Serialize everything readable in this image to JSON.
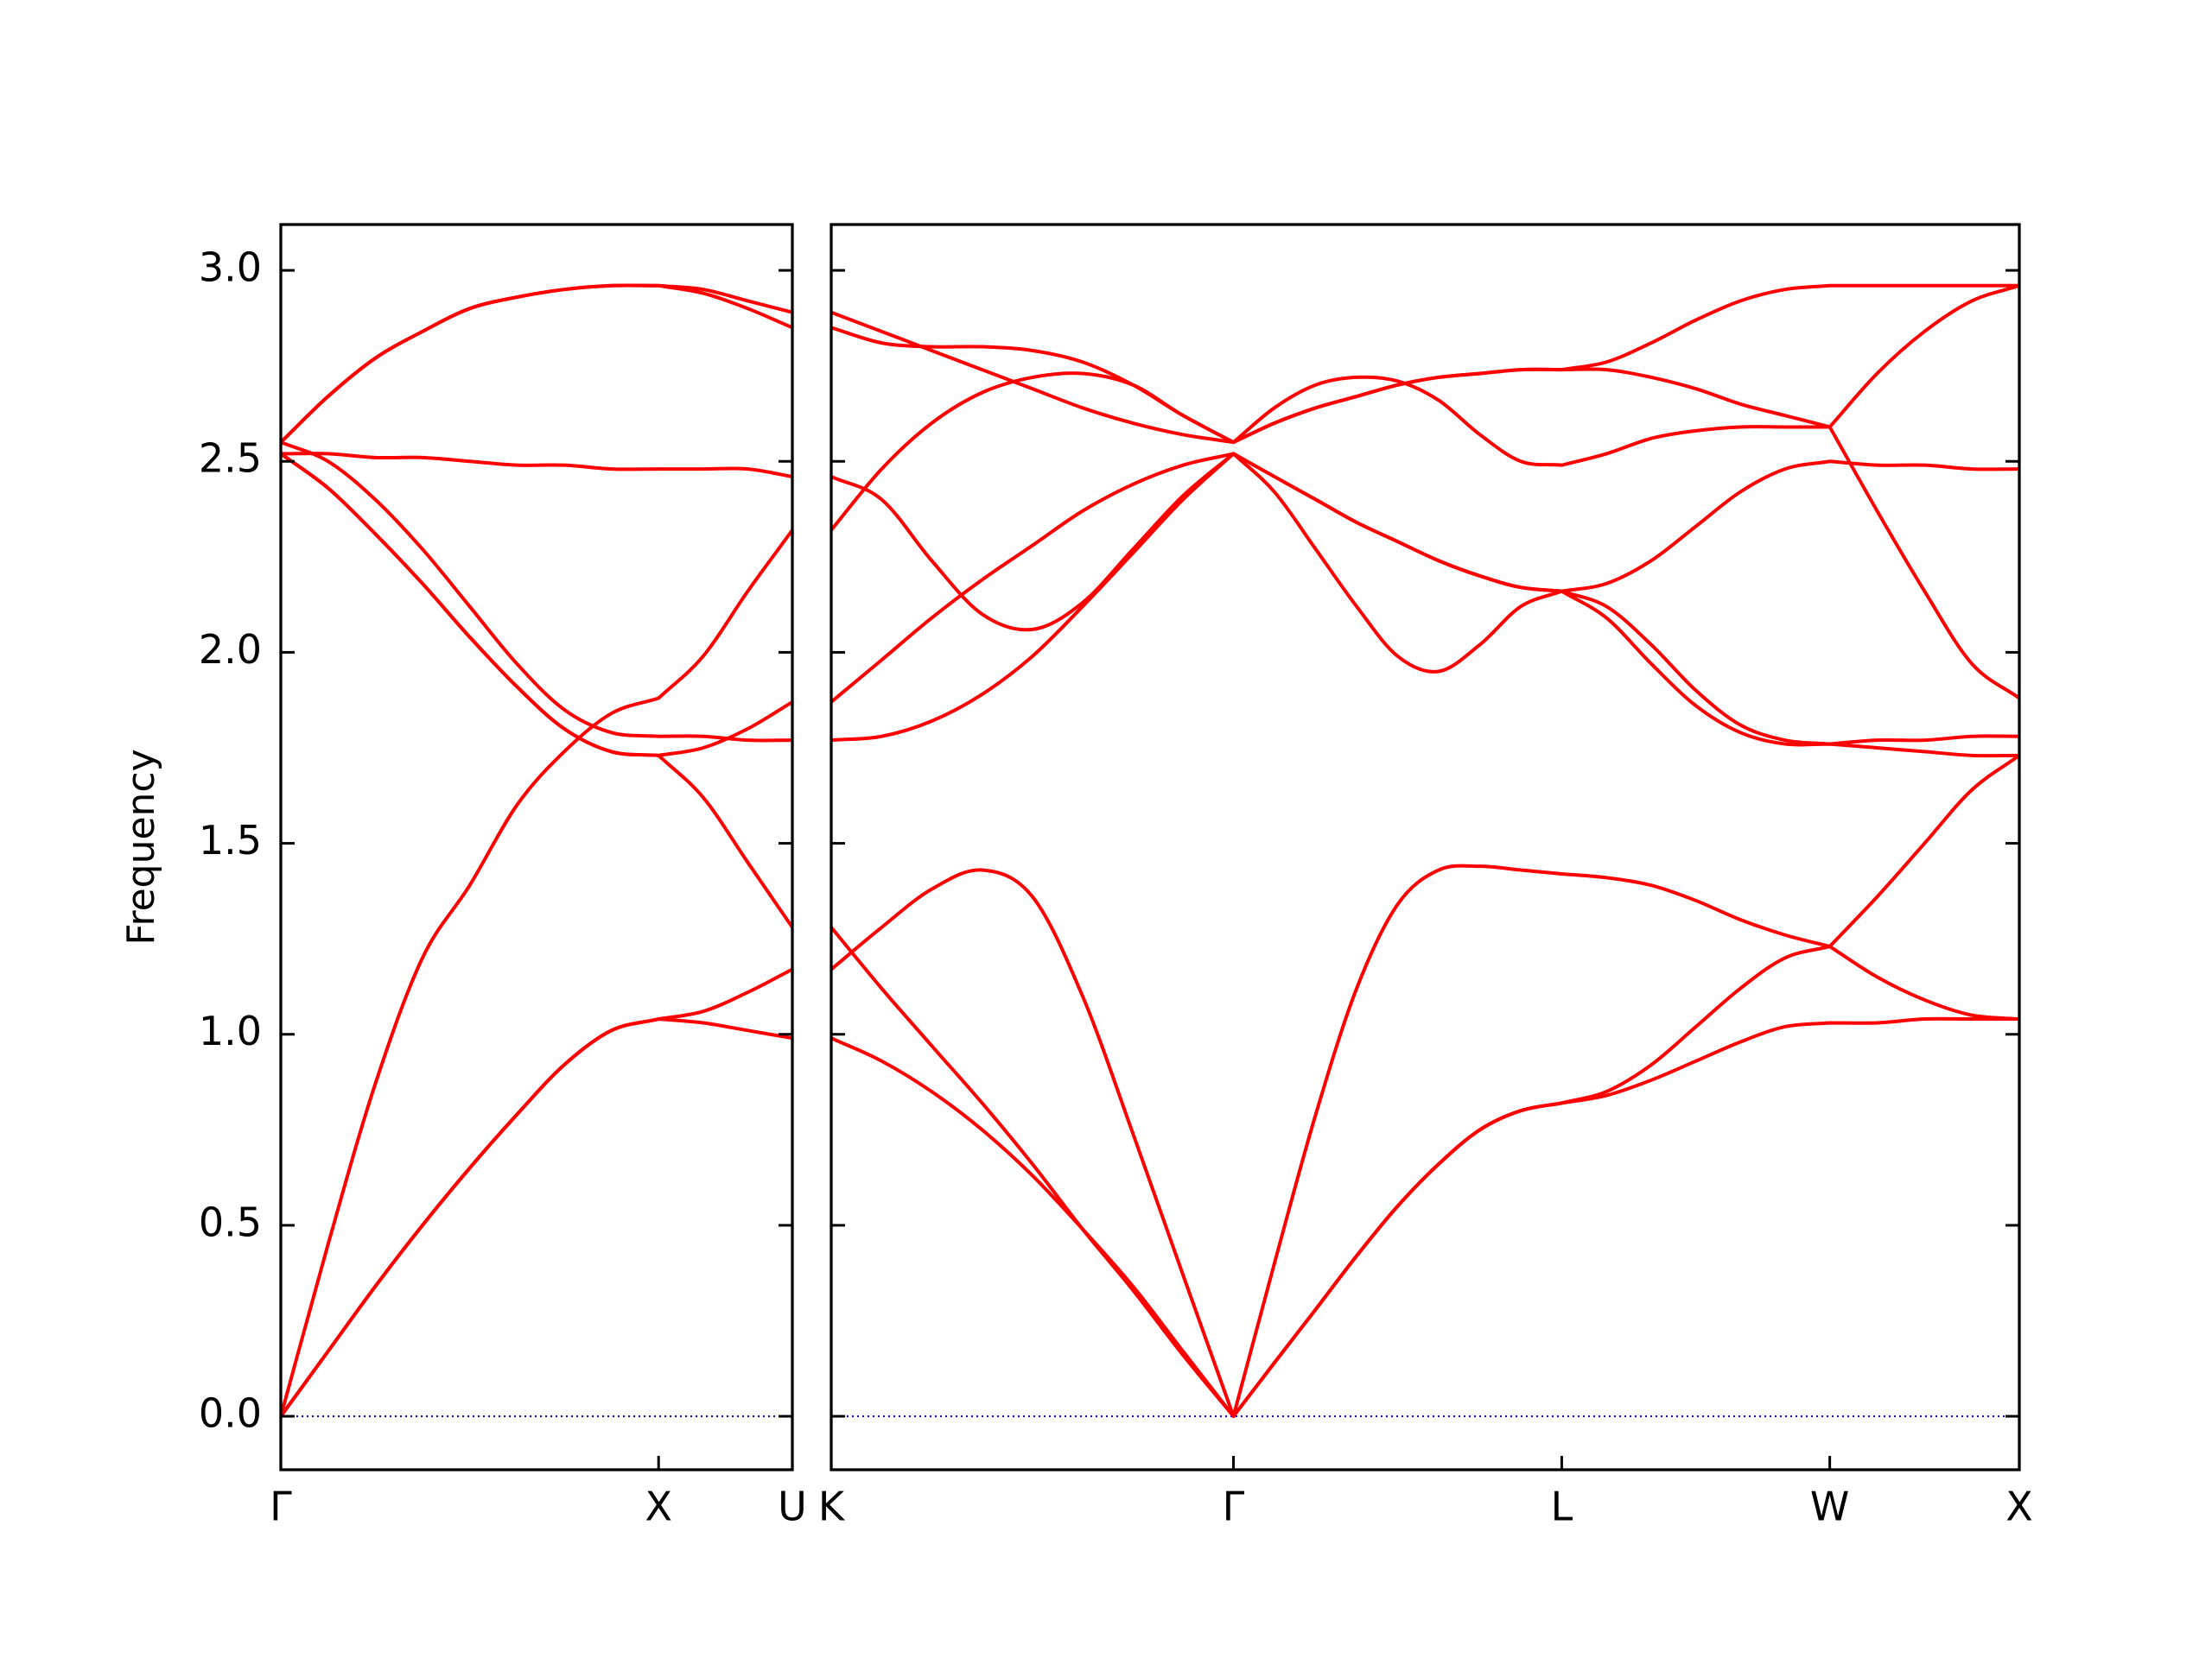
{
  "chart_data": [
    {
      "type": "line",
      "ylabel": "Frequency",
      "line_color": "#ff0000",
      "hline": {
        "y": 0,
        "color": "#0000cc",
        "style": "dotted"
      },
      "xlim": [
        0,
        1.354
      ],
      "ylim": [
        -0.14,
        3.12
      ],
      "xticks": [
        {
          "value": 0,
          "label": "Γ"
        },
        {
          "value": 1,
          "label": "X"
        },
        {
          "value": 1.354,
          "label": "U"
        }
      ],
      "yticks": [
        {
          "value": 0,
          "label": "0.0"
        },
        {
          "value": 0.5,
          "label": "0.5"
        },
        {
          "value": 1,
          "label": "1.0"
        },
        {
          "value": 1.5,
          "label": "1.5"
        },
        {
          "value": 2,
          "label": "2.0"
        },
        {
          "value": 2.5,
          "label": "2.5"
        },
        {
          "value": 3,
          "label": "3.0"
        }
      ],
      "x": [
        0,
        0.125,
        0.25,
        0.375,
        0.5,
        0.625,
        0.75,
        0.875,
        1,
        1.118,
        1.236,
        1.354
      ],
      "series": [
        {
          "values": [
            2.55,
            2.67,
            2.77,
            2.84,
            2.9,
            2.93,
            2.95,
            2.96,
            2.96,
            2.95,
            2.92,
            2.89
          ]
        },
        {
          "values": [
            2.55,
            2.67,
            2.77,
            2.84,
            2.9,
            2.93,
            2.95,
            2.96,
            2.96,
            2.94,
            2.9,
            2.85
          ]
        },
        {
          "values": [
            2.52,
            2.52,
            2.51,
            2.51,
            2.5,
            2.49,
            2.49,
            2.48,
            2.48,
            2.48,
            2.48,
            2.46
          ]
        },
        {
          "values": [
            2.55,
            2.5,
            2.4,
            2.27,
            2.12,
            1.97,
            1.85,
            1.79,
            1.78,
            1.78,
            1.77,
            1.77
          ]
        },
        {
          "values": [
            2.52,
            2.43,
            2.31,
            2.18,
            2.04,
            1.91,
            1.8,
            1.74,
            1.73,
            1.75,
            1.8,
            1.87
          ]
        },
        {
          "values": [
            2.52,
            2.43,
            2.31,
            2.18,
            2.04,
            1.91,
            1.8,
            1.74,
            1.73,
            1.62,
            1.45,
            1.28
          ]
        },
        {
          "values": [
            0,
            0.45,
            0.87,
            1.2,
            1.39,
            1.6,
            1.74,
            1.84,
            1.88,
            1.99,
            2.16,
            2.32
          ]
        },
        {
          "values": [
            0,
            0.17,
            0.34,
            0.5,
            0.65,
            0.79,
            0.92,
            1.01,
            1.04,
            1.06,
            1.11,
            1.17
          ]
        },
        {
          "values": [
            0,
            0.17,
            0.34,
            0.5,
            0.65,
            0.79,
            0.92,
            1.01,
            1.04,
            1.03,
            1.01,
            0.99
          ]
        }
      ]
    },
    {
      "type": "line",
      "line_color": "#ff0000",
      "hline": {
        "y": 0,
        "color": "#0000cc",
        "style": "dotted"
      },
      "xlim": [
        1.354,
        4.488
      ],
      "ylim": [
        -0.14,
        3.12
      ],
      "xticks": [
        {
          "value": 1.354,
          "label": "K"
        },
        {
          "value": 2.415,
          "label": "Γ"
        },
        {
          "value": 3.281,
          "label": "L"
        },
        {
          "value": 3.988,
          "label": "W"
        },
        {
          "value": 4.488,
          "label": "X"
        }
      ],
      "yticks": [
        0,
        0.5,
        1,
        1.5,
        2,
        2.5,
        3
      ],
      "x": [
        1.354,
        1.487,
        1.619,
        1.752,
        1.885,
        2.017,
        2.15,
        2.282,
        2.415,
        2.523,
        2.632,
        2.74,
        2.848,
        2.956,
        3.065,
        3.173,
        3.281,
        3.399,
        3.517,
        3.635,
        3.752,
        3.87,
        3.988,
        4.113,
        4.238,
        4.363,
        4.488
      ],
      "series": [
        {
          "values": [
            2.89,
            2.84,
            2.79,
            2.74,
            2.69,
            2.64,
            2.6,
            2.57,
            2.55,
            2.6,
            2.64,
            2.67,
            2.7,
            2.72,
            2.73,
            2.74,
            2.74,
            2.76,
            2.81,
            2.87,
            2.92,
            2.95,
            2.96,
            2.96,
            2.96,
            2.96,
            2.96
          ]
        },
        {
          "values": [
            2.85,
            2.81,
            2.8,
            2.8,
            2.79,
            2.76,
            2.7,
            2.62,
            2.55,
            2.6,
            2.64,
            2.67,
            2.7,
            2.72,
            2.73,
            2.74,
            2.74,
            2.74,
            2.72,
            2.69,
            2.65,
            2.62,
            2.59,
            2.73,
            2.84,
            2.92,
            2.96
          ]
        },
        {
          "values": [
            2.32,
            2.48,
            2.6,
            2.68,
            2.72,
            2.73,
            2.7,
            2.62,
            2.55,
            2.64,
            2.7,
            2.72,
            2.71,
            2.66,
            2.57,
            2.5,
            2.49,
            2.52,
            2.56,
            2.58,
            2.59,
            2.59,
            2.59,
            2.37,
            2.16,
            1.97,
            1.88
          ]
        },
        {
          "values": [
            2.46,
            2.4,
            2.24,
            2.1,
            2.06,
            2.13,
            2.27,
            2.41,
            2.52,
            2.46,
            2.4,
            2.34,
            2.29,
            2.24,
            2.2,
            2.17,
            2.16,
            2.18,
            2.24,
            2.33,
            2.42,
            2.48,
            2.5,
            2.49,
            2.49,
            2.48,
            2.48
          ]
        },
        {
          "values": [
            1.87,
            1.98,
            2.09,
            2.19,
            2.28,
            2.37,
            2.44,
            2.49,
            2.52,
            2.46,
            2.4,
            2.34,
            2.29,
            2.24,
            2.2,
            2.17,
            2.16,
            2.12,
            2.02,
            1.9,
            1.81,
            1.77,
            1.76,
            1.77,
            1.77,
            1.78,
            1.78
          ]
        },
        {
          "values": [
            1.77,
            1.78,
            1.82,
            1.89,
            1.99,
            2.12,
            2.26,
            2.4,
            2.52,
            2.42,
            2.27,
            2.12,
            1.99,
            1.95,
            2.02,
            2.12,
            2.16,
            2.09,
            1.97,
            1.86,
            1.79,
            1.76,
            1.76,
            1.75,
            1.74,
            1.73,
            1.73
          ]
        },
        {
          "values": [
            1.28,
            1.12,
            0.97,
            0.82,
            0.66,
            0.49,
            0.33,
            0.16,
            0,
            0.4,
            0.79,
            1.12,
            1.34,
            1.43,
            1.44,
            1.43,
            1.42,
            1.41,
            1.39,
            1.35,
            1.3,
            1.26,
            1.23,
            1.36,
            1.5,
            1.64,
            1.73
          ]
        },
        {
          "values": [
            1.17,
            1.28,
            1.38,
            1.43,
            1.36,
            1.1,
            0.74,
            0.37,
            0,
            0.14,
            0.28,
            0.42,
            0.55,
            0.66,
            0.75,
            0.8,
            0.82,
            0.85,
            0.92,
            1.02,
            1.12,
            1.2,
            1.23,
            1.15,
            1.09,
            1.05,
            1.04
          ]
        },
        {
          "values": [
            0.99,
            0.93,
            0.85,
            0.75,
            0.63,
            0.49,
            0.34,
            0.17,
            0,
            0.14,
            0.28,
            0.42,
            0.55,
            0.66,
            0.75,
            0.8,
            0.82,
            0.84,
            0.88,
            0.93,
            0.98,
            1.02,
            1.03,
            1.03,
            1.04,
            1.04,
            1.04
          ]
        }
      ]
    }
  ]
}
